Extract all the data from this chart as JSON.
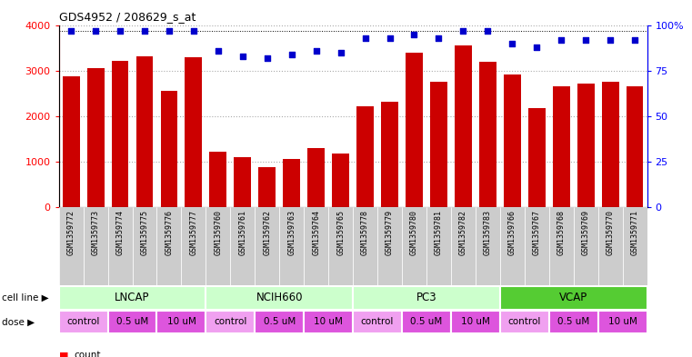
{
  "title": "GDS4952 / 208629_s_at",
  "samples": [
    "GSM1359772",
    "GSM1359773",
    "GSM1359774",
    "GSM1359775",
    "GSM1359776",
    "GSM1359777",
    "GSM1359760",
    "GSM1359761",
    "GSM1359762",
    "GSM1359763",
    "GSM1359764",
    "GSM1359765",
    "GSM1359778",
    "GSM1359779",
    "GSM1359780",
    "GSM1359781",
    "GSM1359782",
    "GSM1359783",
    "GSM1359766",
    "GSM1359767",
    "GSM1359768",
    "GSM1359769",
    "GSM1359770",
    "GSM1359771"
  ],
  "counts": [
    2880,
    3050,
    3220,
    3310,
    2560,
    3300,
    1220,
    1100,
    870,
    1050,
    1300,
    1170,
    2220,
    2310,
    3390,
    2760,
    3560,
    3200,
    2920,
    2170,
    2660,
    2720,
    2760,
    2650
  ],
  "percentiles": [
    97,
    97,
    97,
    97,
    97,
    97,
    86,
    83,
    82,
    84,
    86,
    85,
    93,
    93,
    95,
    93,
    97,
    97,
    90,
    88,
    92,
    92,
    92,
    92
  ],
  "cell_lines": [
    {
      "label": "LNCAP",
      "start": 0,
      "end": 6
    },
    {
      "label": "NCIH660",
      "start": 6,
      "end": 12
    },
    {
      "label": "PC3",
      "start": 12,
      "end": 18
    },
    {
      "label": "VCAP",
      "start": 18,
      "end": 24
    }
  ],
  "dose_groups": [
    {
      "label": "control",
      "start": 0,
      "end": 2
    },
    {
      "label": "0.5 uM",
      "start": 2,
      "end": 4
    },
    {
      "label": "10 uM",
      "start": 4,
      "end": 6
    },
    {
      "label": "control",
      "start": 6,
      "end": 8
    },
    {
      "label": "0.5 uM",
      "start": 8,
      "end": 10
    },
    {
      "label": "10 uM",
      "start": 10,
      "end": 12
    },
    {
      "label": "control",
      "start": 12,
      "end": 14
    },
    {
      "label": "0.5 uM",
      "start": 14,
      "end": 16
    },
    {
      "label": "10 uM",
      "start": 16,
      "end": 18
    },
    {
      "label": "control",
      "start": 18,
      "end": 20
    },
    {
      "label": "0.5 uM",
      "start": 20,
      "end": 22
    },
    {
      "label": "10 uM",
      "start": 22,
      "end": 24
    }
  ],
  "bar_color": "#cc0000",
  "dot_color": "#0000cc",
  "ylim_left": [
    0,
    4000
  ],
  "ylim_right": [
    0,
    100
  ],
  "yticks_left": [
    0,
    1000,
    2000,
    3000,
    4000
  ],
  "yticks_right": [
    0,
    25,
    50,
    75,
    100
  ],
  "yticklabels_right": [
    "0",
    "25",
    "50",
    "75",
    "100%"
  ],
  "grid_color": "#aaaaaa",
  "bg_color": "#ffffff",
  "sample_bg": "#cccccc",
  "cell_line_colors": {
    "LNCAP": "#ccffcc",
    "NCIH660": "#ccffcc",
    "PC3": "#ccffcc",
    "VCAP": "#55cc33"
  },
  "dose_colors": {
    "control": "#f0a0f0",
    "0.5 uM": "#dd55dd",
    "10 uM": "#dd55dd"
  }
}
